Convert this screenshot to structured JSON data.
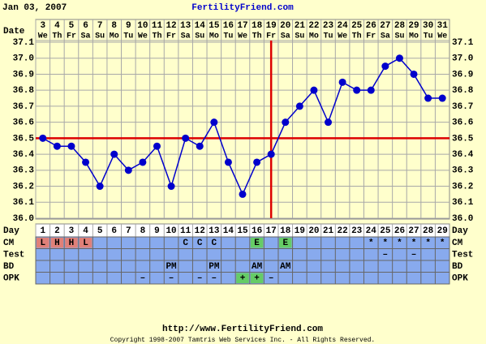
{
  "chart_data": {
    "type": "line",
    "title": "Jan 03, 2007",
    "site": "FertilityFriend.com",
    "date_label": "Date",
    "day_label": "Day",
    "dates": [
      3,
      4,
      5,
      6,
      7,
      8,
      9,
      10,
      11,
      12,
      13,
      14,
      15,
      16,
      17,
      18,
      19,
      20,
      21,
      22,
      23,
      24,
      25,
      26,
      27,
      28,
      29,
      30,
      31
    ],
    "weekdays": [
      "We",
      "Th",
      "Fr",
      "Sa",
      "Su",
      "Mo",
      "Tu",
      "We",
      "Th",
      "Fr",
      "Sa",
      "Su",
      "Mo",
      "Tu",
      "We",
      "Th",
      "Fr",
      "Sa",
      "Su",
      "Mo",
      "Tu",
      "We",
      "Th",
      "Fr",
      "Sa",
      "Su",
      "Mo",
      "Tu",
      "We"
    ],
    "categories": [
      1,
      2,
      3,
      4,
      5,
      6,
      7,
      8,
      9,
      10,
      11,
      12,
      13,
      14,
      15,
      16,
      17,
      18,
      19,
      20,
      21,
      22,
      23,
      24,
      25,
      26,
      27,
      28,
      29
    ],
    "series": [
      {
        "color": "#0000cc",
        "values": [
          36.5,
          36.45,
          36.45,
          36.35,
          36.2,
          36.4,
          36.3,
          36.35,
          36.45,
          36.2,
          36.5,
          36.45,
          36.6,
          36.35,
          36.15,
          36.35,
          36.4,
          36.6,
          36.7,
          36.8,
          36.6,
          36.85,
          36.8,
          36.8,
          36.95,
          37.0,
          36.9,
          36.75,
          36.75
        ]
      }
    ],
    "coverline": 36.5,
    "ovulation_day": 17,
    "marker_color": "#dd0000",
    "ylim": [
      36.0,
      37.1
    ],
    "yticks": [
      {
        "value": 36.0,
        "label": "36.0"
      },
      36.1,
      36.2,
      36.3,
      36.4,
      36.5,
      36.6,
      36.7,
      36.8,
      36.9,
      {
        "value": 37.0,
        "label": "37.0"
      },
      37.1
    ],
    "grid": true,
    "rows": [
      {
        "label": "CM",
        "cells": [
          "L",
          "H",
          "H",
          "L",
          null,
          null,
          null,
          null,
          null,
          null,
          "C",
          "C",
          "C",
          null,
          null,
          "E",
          null,
          "E",
          null,
          null,
          null,
          null,
          null,
          "*",
          "*",
          "*",
          "*",
          "*",
          "*"
        ],
        "cell_colors": [
          "#e08078",
          "#e08078",
          "#e08078",
          "#e08078",
          null,
          null,
          null,
          null,
          null,
          null,
          null,
          null,
          null,
          null,
          null,
          "#66cc66",
          null,
          "#66cc66",
          null,
          null,
          null,
          null,
          null,
          null,
          null,
          null,
          null,
          null,
          null
        ]
      },
      {
        "label": "Test",
        "cells": [
          null,
          null,
          null,
          null,
          null,
          null,
          null,
          null,
          null,
          null,
          null,
          null,
          null,
          null,
          null,
          null,
          null,
          null,
          null,
          null,
          null,
          null,
          null,
          null,
          "–",
          null,
          "–",
          null,
          null
        ],
        "cell_colors": [
          null,
          null,
          null,
          null,
          null,
          null,
          null,
          null,
          null,
          null,
          null,
          null,
          null,
          null,
          null,
          null,
          null,
          null,
          null,
          null,
          null,
          null,
          null,
          null,
          null,
          null,
          null,
          null,
          null
        ]
      },
      {
        "label": "BD",
        "cells": [
          null,
          null,
          null,
          null,
          null,
          null,
          null,
          null,
          null,
          "PM",
          null,
          null,
          "PM",
          null,
          null,
          "AM",
          null,
          "AM",
          null,
          null,
          null,
          null,
          null,
          null,
          null,
          null,
          null,
          null,
          null
        ],
        "cell_colors": [
          null,
          null,
          null,
          null,
          null,
          null,
          null,
          null,
          null,
          null,
          null,
          null,
          null,
          null,
          null,
          null,
          null,
          null,
          null,
          null,
          null,
          null,
          null,
          null,
          null,
          null,
          null,
          null,
          null
        ]
      },
      {
        "label": "OPK",
        "cells": [
          null,
          null,
          null,
          null,
          null,
          null,
          null,
          "–",
          null,
          "–",
          null,
          "–",
          "–",
          null,
          "+",
          "+",
          "–",
          null,
          null,
          null,
          null,
          null,
          null,
          null,
          null,
          null,
          null,
          null,
          null
        ],
        "cell_colors": [
          null,
          null,
          null,
          null,
          null,
          null,
          null,
          null,
          null,
          null,
          null,
          null,
          null,
          null,
          "#66cc66",
          "#66cc66",
          null,
          null,
          null,
          null,
          null,
          null,
          null,
          null,
          null,
          null,
          null,
          null,
          null
        ]
      }
    ],
    "row_color": "#88aaee",
    "footer_url": "http://www.FertilityFriend.com",
    "copyright": "Copyright 1998-2007 Tamtris Web Services Inc. - All Rights Reserved."
  }
}
